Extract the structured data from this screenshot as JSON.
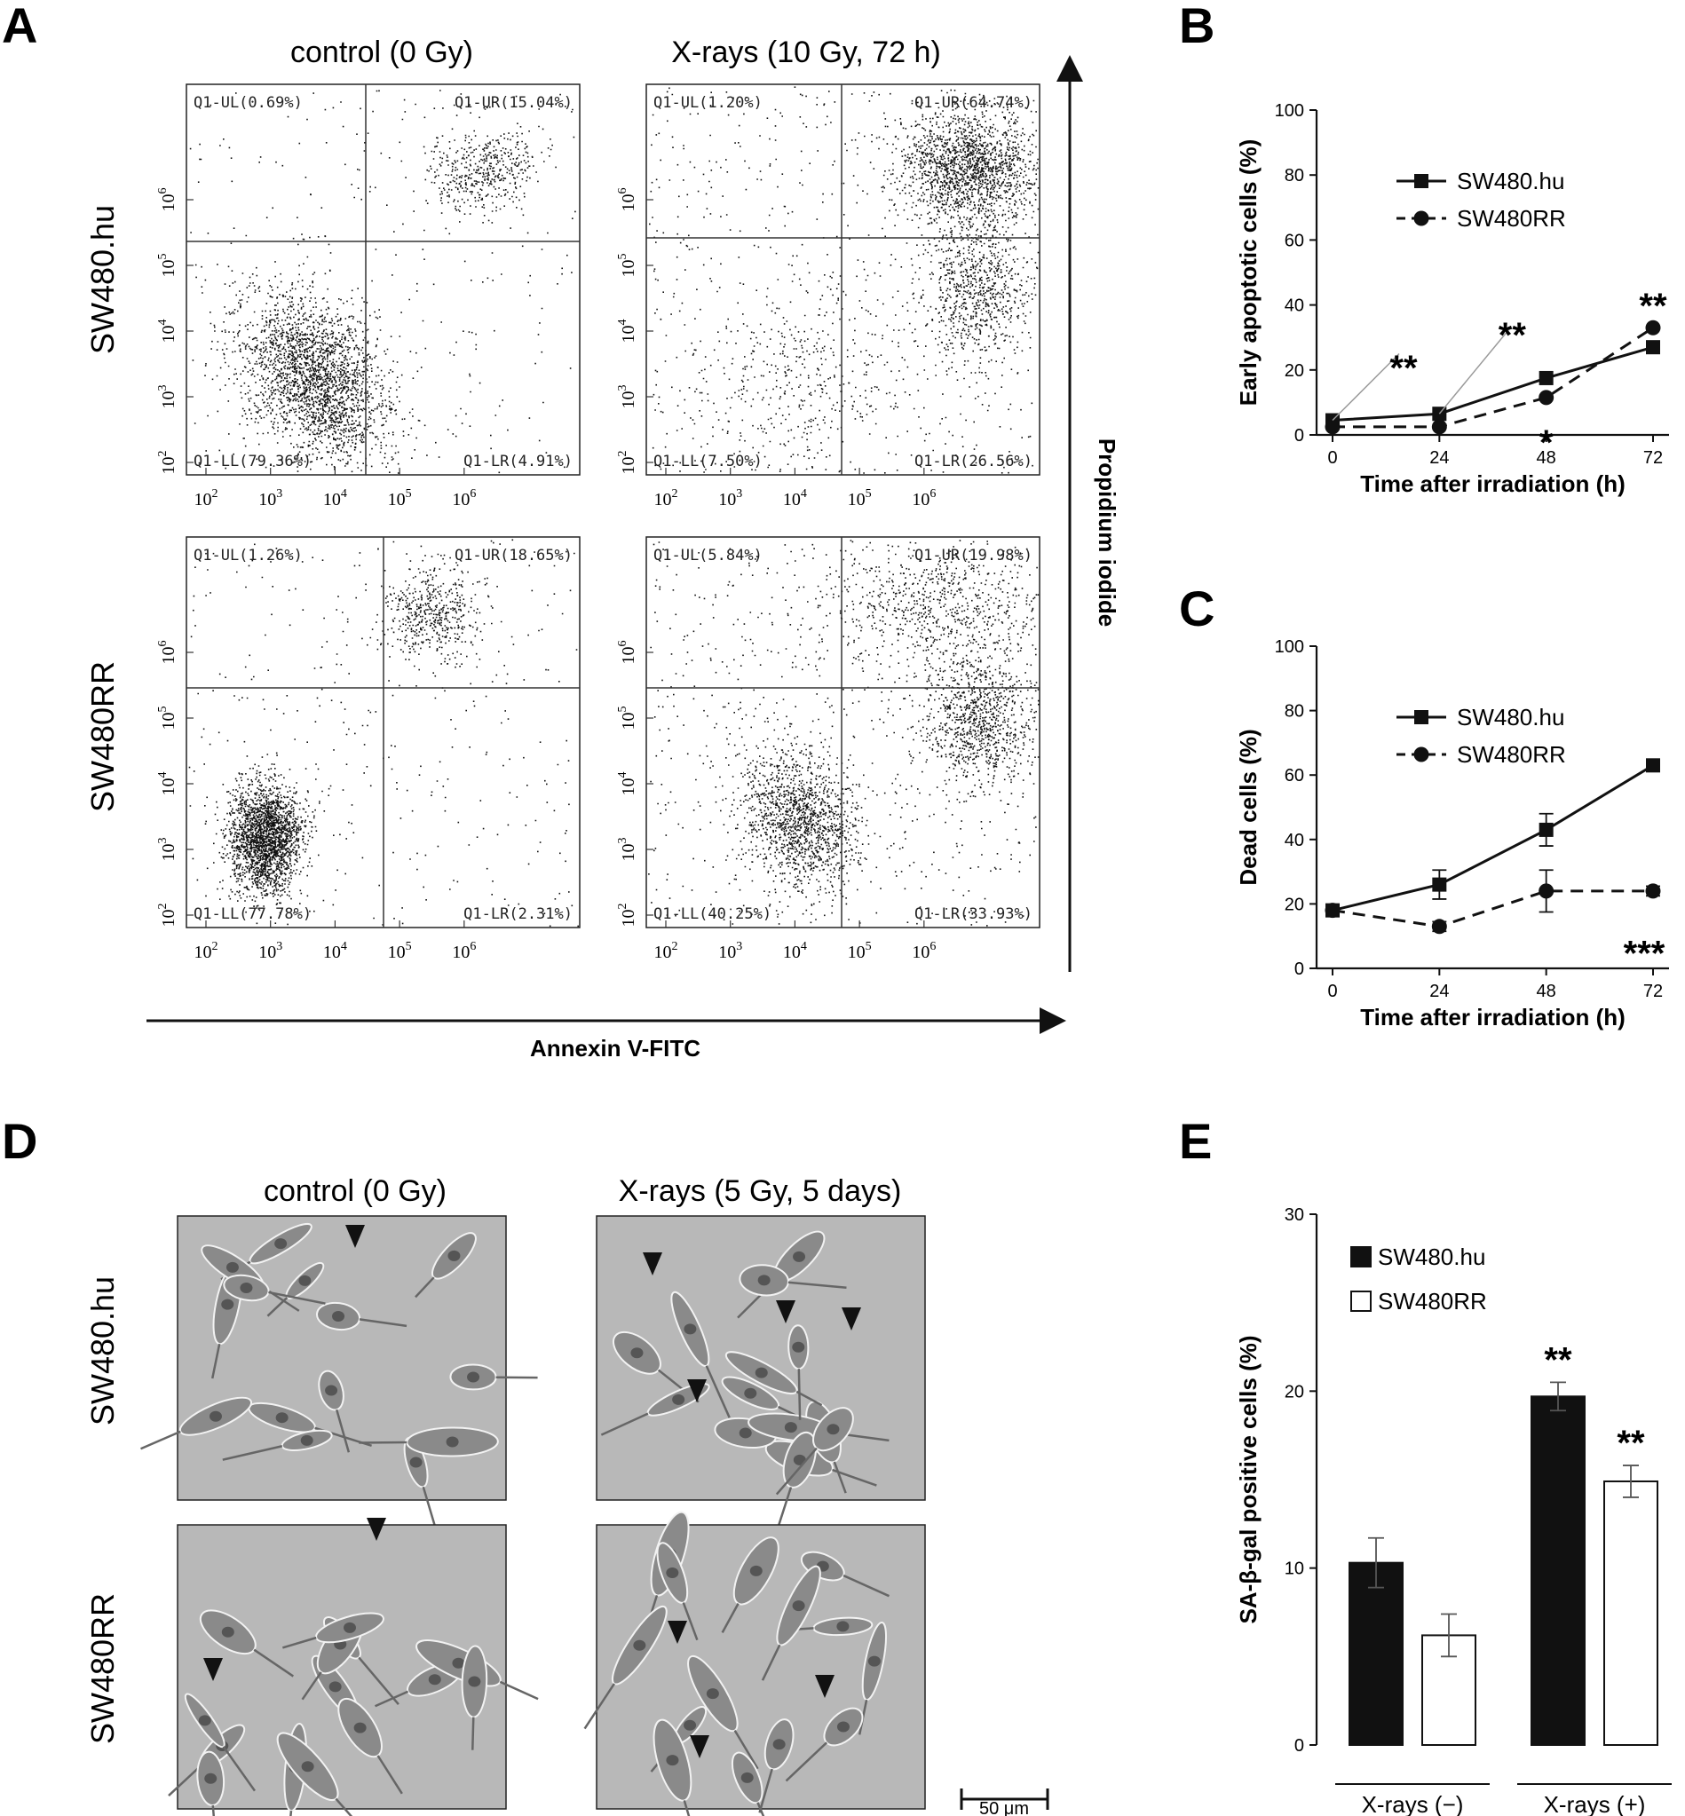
{
  "panel_labels": {
    "A": "A",
    "B": "B",
    "C": "C",
    "D": "D",
    "E": "E"
  },
  "panelA": {
    "col_titles": [
      "control (0 Gy)",
      "X-rays (10 Gy, 72 h)"
    ],
    "row_titles": [
      "SW480.hu",
      "SW480RR"
    ],
    "x_axis_label": "Annexin V-FITC",
    "y_axis_label": "Propidium iodide",
    "log_ticks": [
      "10",
      "10",
      "10",
      "10",
      "10"
    ],
    "log_exps": [
      "2",
      "3",
      "4",
      "5",
      "6"
    ],
    "plots": [
      {
        "UL": "Q1-UL(0.69%)",
        "UR": "Q1-UR(15.04%)",
        "LL": "Q1-LL(79.36%)",
        "LR": "Q1-LR(4.91%)"
      },
      {
        "UL": "Q1-UL(1.20%)",
        "UR": "Q1-UR(64.74%)",
        "LL": "Q1-LL(7.50%)",
        "LR": "Q1-LR(26.56%)"
      },
      {
        "UL": "Q1-UL(1.26%)",
        "UR": "Q1-UR(18.65%)",
        "LL": "Q1-LL(77.78%)",
        "LR": "Q1-LR(2.31%)"
      },
      {
        "UL": "Q1-UL(5.84%)",
        "UR": "Q1-UR(19.98%)",
        "LL": "Q1-LL(40.25%)",
        "LR": "Q1-LR(33.93%)"
      }
    ]
  },
  "panelD": {
    "col_titles": [
      "control (0 Gy)",
      "X-rays (5 Gy, 5 days)"
    ],
    "row_titles": [
      "SW480.hu",
      "SW480RR"
    ],
    "scale_bar": "50 μm"
  },
  "colors": {
    "ink": "#111111",
    "image_bg": "#b8b8b8"
  },
  "chart_data": [
    {
      "panel": "B",
      "type": "line",
      "xlabel": "Time after irradiation (h)",
      "ylabel": "Early apoptotic cells (%)",
      "x": [
        0,
        24,
        48,
        72
      ],
      "xlim": [
        0,
        72
      ],
      "ylim": [
        0,
        100
      ],
      "yticks": [
        0,
        20,
        40,
        60,
        80,
        100
      ],
      "series": [
        {
          "name": "SW480.hu",
          "values": [
            4.5,
            6.5,
            17.5,
            27
          ],
          "marker": "square",
          "line": "solid"
        },
        {
          "name": "SW480RR",
          "values": [
            2.5,
            2.5,
            11.5,
            33
          ],
          "marker": "circle",
          "line": "dashed"
        }
      ],
      "annotations": [
        "**",
        "**",
        "*",
        "**"
      ],
      "legend": "top-left"
    },
    {
      "panel": "C",
      "type": "line",
      "xlabel": "Time after irradiation (h)",
      "ylabel": "Dead cells (%)",
      "x": [
        0,
        24,
        48,
        72
      ],
      "xlim": [
        0,
        72
      ],
      "ylim": [
        0,
        100
      ],
      "yticks": [
        0,
        20,
        40,
        60,
        80,
        100
      ],
      "series": [
        {
          "name": "SW480.hu",
          "values": [
            18,
            26,
            43,
            63
          ],
          "errors": [
            0,
            4.5,
            5,
            1
          ],
          "marker": "square",
          "line": "solid"
        },
        {
          "name": "SW480RR",
          "values": [
            18,
            13,
            24,
            24
          ],
          "errors": [
            0,
            1.5,
            6.5,
            1.5
          ],
          "marker": "circle",
          "line": "dashed"
        }
      ],
      "annotations": [
        "***"
      ],
      "legend": "top-left"
    },
    {
      "panel": "E",
      "type": "bar",
      "ylabel": "SA-β-gal positive cells (%)",
      "categories": [
        "X-rays (−)",
        "X-rays (+)"
      ],
      "ylim": [
        0,
        30
      ],
      "yticks": [
        0,
        10,
        20,
        30
      ],
      "series": [
        {
          "name": "SW480.hu",
          "values": [
            10.3,
            19.7
          ],
          "errors": [
            1.4,
            0.8
          ],
          "fill": "#111111"
        },
        {
          "name": "SW480RR",
          "values": [
            6.2,
            14.9
          ],
          "errors": [
            1.2,
            0.9
          ],
          "fill": "#ffffff"
        }
      ],
      "annotations": [
        "**",
        "**"
      ],
      "legend": "top-left"
    }
  ]
}
